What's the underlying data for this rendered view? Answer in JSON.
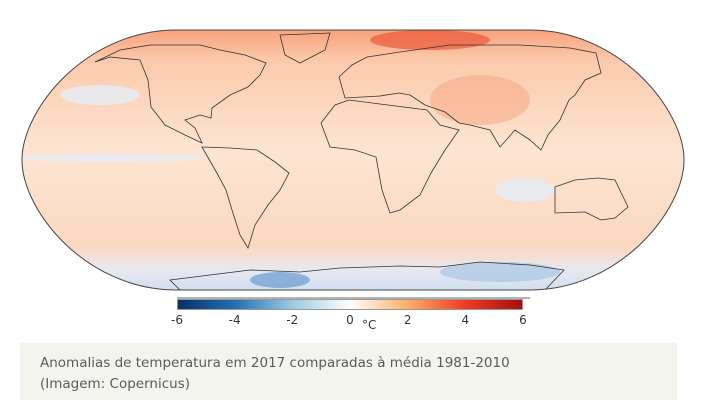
{
  "map": {
    "projection_shape": "robinson",
    "colors": {
      "ocean_base": "#fde3cf",
      "arctic_warm": "#ee5a3a",
      "antarctic_cool": "#c6dbef",
      "coast": "#333333"
    }
  },
  "colorbar": {
    "ticks": [
      "-6",
      "-4",
      "-2",
      "0",
      "2",
      "4",
      "6"
    ],
    "tick_values": [
      -6,
      -4,
      -2,
      0,
      2,
      4,
      6
    ],
    "unit": "°C",
    "range": [
      -6,
      6
    ],
    "colors": [
      "#08306b",
      "#2171b5",
      "#9ecae1",
      "#ffffff",
      "#fdae6b",
      "#f03b20",
      "#a50f15"
    ]
  },
  "caption": {
    "line1": "Anomalias de temperatura em 2017 comparadas à média 1981-2010",
    "line2": "(Imagem: Copernicus)"
  }
}
